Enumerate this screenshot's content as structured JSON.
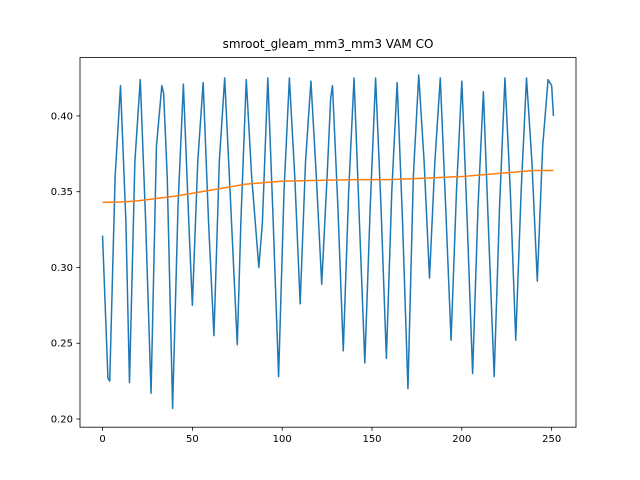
{
  "chart_data": {
    "type": "line",
    "title": "smroot_gleam_mm3_mm3 VAM CO",
    "xlim": [
      -12.55,
      263.55
    ],
    "xticks": [
      0,
      50,
      100,
      150,
      200,
      250
    ],
    "ylim": [
      0.1946,
      0.4385
    ],
    "yticks": [
      {
        "value": 0.2,
        "label": "0.20"
      },
      0.25,
      {
        "value": 0.3,
        "label": "0.30"
      },
      0.35,
      {
        "value": 0.4,
        "label": "0.40"
      }
    ],
    "series": [
      {
        "color": "#1f77b4",
        "x": [
          0,
          3,
          4,
          7,
          10,
          13,
          15,
          18,
          21,
          24,
          27,
          30,
          33,
          34,
          36,
          39,
          42,
          45,
          48,
          50,
          53,
          56,
          59,
          62,
          65,
          68,
          71,
          75,
          77,
          80,
          83,
          87,
          89,
          92,
          95,
          98,
          101,
          104,
          107,
          110,
          113,
          116,
          119,
          122,
          125,
          127,
          128,
          131,
          134,
          137,
          140,
          143,
          146,
          149,
          152,
          155,
          158,
          161,
          164,
          167,
          170,
          173,
          176,
          179,
          182,
          185,
          188,
          191,
          194,
          197,
          200,
          203,
          206,
          209,
          212,
          215,
          218,
          221,
          224,
          227,
          230,
          233,
          236,
          239,
          242,
          245,
          248,
          250,
          251
        ],
        "values": [
          0.321,
          0.227,
          0.225,
          0.36,
          0.42,
          0.33,
          0.224,
          0.37,
          0.424,
          0.33,
          0.217,
          0.38,
          0.42,
          0.415,
          0.36,
          0.207,
          0.34,
          0.421,
          0.33,
          0.275,
          0.37,
          0.422,
          0.33,
          0.255,
          0.37,
          0.425,
          0.35,
          0.249,
          0.33,
          0.424,
          0.36,
          0.3,
          0.33,
          0.425,
          0.33,
          0.228,
          0.35,
          0.425,
          0.36,
          0.276,
          0.37,
          0.423,
          0.36,
          0.289,
          0.36,
          0.412,
          0.42,
          0.34,
          0.245,
          0.35,
          0.425,
          0.33,
          0.237,
          0.34,
          0.425,
          0.34,
          0.24,
          0.35,
          0.422,
          0.33,
          0.22,
          0.36,
          0.427,
          0.37,
          0.293,
          0.37,
          0.425,
          0.34,
          0.252,
          0.35,
          0.423,
          0.33,
          0.23,
          0.34,
          0.416,
          0.32,
          0.228,
          0.34,
          0.425,
          0.35,
          0.252,
          0.35,
          0.425,
          0.37,
          0.291,
          0.38,
          0.424,
          0.42,
          0.4
        ]
      },
      {
        "color": "#ff7f0e",
        "x": [
          0,
          10,
          20,
          30,
          40,
          50,
          60,
          70,
          80,
          90,
          100,
          120,
          140,
          160,
          180,
          200,
          220,
          240,
          251
        ],
        "values": [
          0.343,
          0.3432,
          0.344,
          0.3455,
          0.347,
          0.349,
          0.351,
          0.353,
          0.355,
          0.356,
          0.357,
          0.3575,
          0.358,
          0.358,
          0.359,
          0.36,
          0.362,
          0.364,
          0.364
        ]
      }
    ]
  }
}
